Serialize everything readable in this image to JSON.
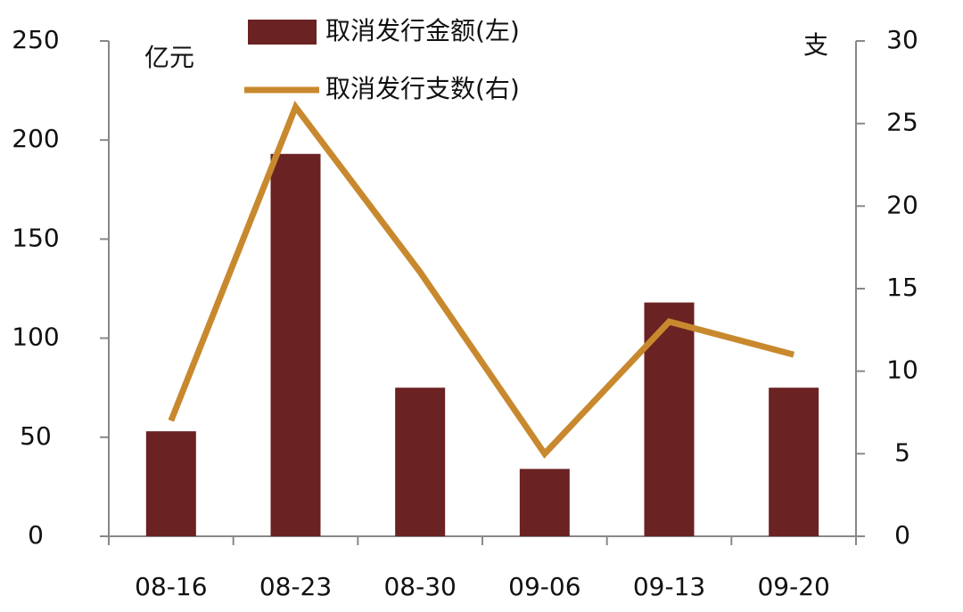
{
  "chart_data": {
    "type": "bar-line",
    "categories": [
      "08-16",
      "08-23",
      "08-30",
      "09-06",
      "09-13",
      "09-20"
    ],
    "series": [
      {
        "name": "取消发行金额(左)",
        "type": "bar",
        "color": "#6b2222",
        "values": [
          53,
          193,
          75,
          34,
          118,
          75
        ]
      },
      {
        "name": "取消发行支数(右)",
        "type": "line",
        "axis": "y2",
        "color": "#c8892e",
        "values": [
          7,
          26,
          16,
          5,
          13,
          11
        ]
      }
    ],
    "ylabel": "亿元",
    "y2label": "支",
    "ylim": [
      0,
      250
    ],
    "yticks": [
      0,
      50,
      100,
      150,
      200,
      250
    ],
    "y2lim": [
      0,
      30
    ],
    "y2ticks": [
      0,
      5,
      10,
      15,
      20,
      25,
      30
    ]
  }
}
